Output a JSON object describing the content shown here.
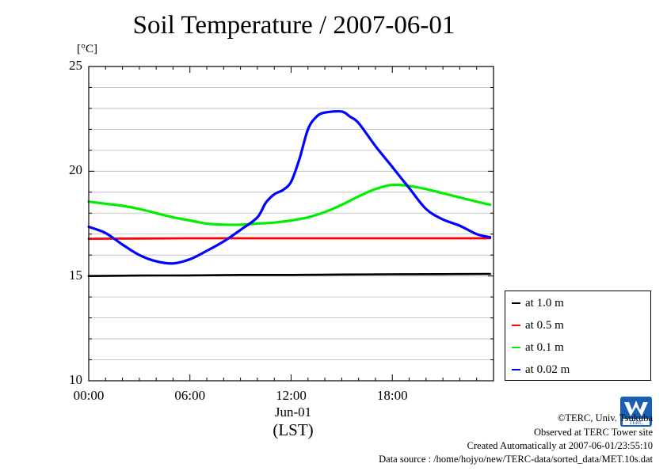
{
  "title": "Soil Temperature / 2007-06-01",
  "y_unit": "[°C]",
  "date_label": "Jun-01",
  "time_zone_label": "(LST)",
  "credits": {
    "copyright": "©TERC, Univ. Tsukuba",
    "observed": "Observed at TERC Tower site",
    "created": "Created Automatically at 2007-06-01/23:55:10",
    "source": "Data source : /home/hojyo/new/TERC-data/sorted_data/MET.10s.dat"
  },
  "logo_text": "TERC",
  "chart_data": {
    "type": "line",
    "title": "Soil Temperature / 2007-06-01",
    "ylabel": "[°C]",
    "xlabel": "(LST)",
    "ylim": [
      10,
      25
    ],
    "xlim": [
      0,
      24
    ],
    "y_ticks": [
      "10",
      "15",
      "20",
      "25"
    ],
    "x_ticks": [
      "00:00",
      "06:00",
      "12:00",
      "18:00"
    ],
    "x_tick_values": [
      0,
      6,
      12,
      18
    ],
    "y_minor_step": 1,
    "grid": true,
    "legend_position": "right-bottom",
    "series": [
      {
        "name": "at 1.0 m",
        "color": "#000000",
        "x": [
          0,
          3,
          6,
          9,
          12,
          15,
          18,
          21,
          23.8
        ],
        "y": [
          15.0,
          15.02,
          15.03,
          15.05,
          15.05,
          15.07,
          15.08,
          15.09,
          15.1
        ]
      },
      {
        "name": "at 0.5 m",
        "color": "#ff0000",
        "x": [
          0,
          3,
          6,
          9,
          12,
          15,
          18,
          21,
          23.8
        ],
        "y": [
          16.78,
          16.79,
          16.8,
          16.8,
          16.8,
          16.8,
          16.8,
          16.8,
          16.8
        ]
      },
      {
        "name": "at 0.1 m",
        "color": "#00ee00",
        "x": [
          0,
          1,
          2,
          3,
          4,
          5,
          6,
          7,
          8,
          9,
          10,
          11,
          12,
          13,
          14,
          15,
          16,
          17,
          18,
          19,
          20,
          21,
          22,
          23,
          23.8
        ],
        "y": [
          18.55,
          18.45,
          18.35,
          18.2,
          18.0,
          17.8,
          17.65,
          17.5,
          17.45,
          17.45,
          17.5,
          17.55,
          17.65,
          17.8,
          18.05,
          18.4,
          18.8,
          19.15,
          19.35,
          19.3,
          19.15,
          18.95,
          18.75,
          18.55,
          18.4
        ]
      },
      {
        "name": "at 0.02 m",
        "color": "#0000ff",
        "x": [
          0,
          1,
          2,
          3,
          4,
          5,
          6,
          7,
          8,
          9,
          10,
          10.5,
          11,
          11.5,
          12,
          12.5,
          13,
          13.5,
          14,
          15,
          15.5,
          16,
          17,
          18,
          19,
          20,
          21,
          22,
          23,
          23.8
        ],
        "y": [
          17.35,
          17.05,
          16.5,
          16.0,
          15.7,
          15.6,
          15.8,
          16.2,
          16.65,
          17.2,
          17.8,
          18.5,
          18.9,
          19.1,
          19.5,
          20.6,
          22.0,
          22.6,
          22.8,
          22.85,
          22.6,
          22.3,
          21.2,
          20.2,
          19.2,
          18.2,
          17.7,
          17.4,
          17.0,
          16.85
        ]
      }
    ]
  }
}
